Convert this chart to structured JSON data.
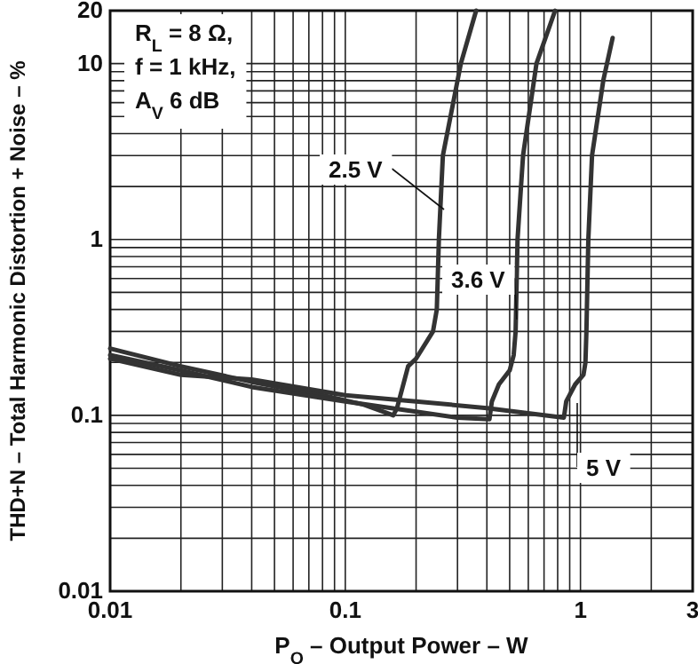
{
  "chart_data": {
    "type": "line",
    "xlabel": "P$_{O}$ – Output Power – W",
    "ylabel": "THD+N – Total Harmonic Distortion + Noise – %",
    "log": "xy",
    "grid": true,
    "line_style": "solid",
    "marker": "none",
    "xlim": [
      0.01,
      3
    ],
    "xticks": [
      0.01,
      0.1,
      1,
      3
    ],
    "ylim": [
      0.01,
      20
    ],
    "yticks": [
      0.01,
      0.1,
      1,
      10,
      20
    ],
    "annotations": [
      "R$_{L}$ = 8 Ω,",
      "f = 1 kHz,",
      "A$_{V}$   6 dB"
    ],
    "series": [
      {
        "name": "2.5 V",
        "color": "#333333",
        "x": [
          0.01,
          0.02,
          0.04,
          0.08,
          0.12,
          0.16,
          0.166,
          0.185,
          0.2,
          0.236,
          0.245,
          0.25,
          0.26,
          0.31,
          0.36
        ],
        "values": [
          0.24,
          0.19,
          0.155,
          0.13,
          0.115,
          0.1,
          0.11,
          0.19,
          0.21,
          0.3,
          0.4,
          1,
          3,
          10,
          20
        ]
      },
      {
        "name": "3.6 V",
        "color": "#333333",
        "x": [
          0.01,
          0.02,
          0.04,
          0.1,
          0.2,
          0.3,
          0.41,
          0.42,
          0.45,
          0.5,
          0.52,
          0.53,
          0.54,
          0.57,
          0.65,
          0.78
        ],
        "values": [
          0.22,
          0.18,
          0.145,
          0.12,
          0.105,
          0.097,
          0.095,
          0.12,
          0.15,
          0.18,
          0.22,
          0.3,
          1,
          3,
          10,
          20
        ]
      },
      {
        "name": "5 V",
        "color": "#333333",
        "x": [
          0.01,
          0.02,
          0.04,
          0.1,
          0.2,
          0.4,
          0.85,
          0.87,
          0.95,
          1.03,
          1.05,
          1.06,
          1.08,
          1.12,
          1.25,
          1.37
        ],
        "values": [
          0.21,
          0.17,
          0.16,
          0.13,
          0.12,
          0.11,
          0.097,
          0.12,
          0.15,
          0.17,
          0.2,
          0.3,
          1,
          3,
          8,
          14
        ]
      }
    ]
  }
}
